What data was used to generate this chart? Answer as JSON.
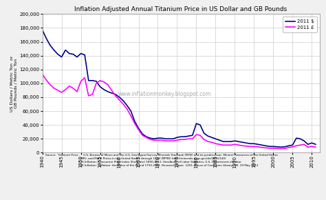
{
  "title": "Inflation Adjusted Annual Titanium Price in US Dollar and GB Pounds",
  "ylabel": "US Dollars / Metric Ton  or\nGB Pounds / Metric Ton",
  "watermark": "www.inflationmonkey.blogspot.com",
  "source_line1": "Source:  Titanium Price -    U.S. Bureau of Mines and the U.S. Geological Survey-Minerals Yearbook (MYB) and its predecessor, Mineral Resources of the United States",
  "source_line2": "                                        (MR), and Metal Prices in the United States through 1998 (MP98) http://minerals.usgs.gov/ds/2005/140/",
  "source_line3": "                                        US Inflation:  Consumer Price Index (Estimate) 1800-2011. Handbook of Labor Statistics, U.S. Department of Labor",
  "source_line4": "                                        UK Inflation:  Inflation: the Value of the Pound 1750-2011. Research Paper  1201, House of Commons Library, UK. 29 May 2012",
  "legend_labels": [
    "2011 $",
    "2011 £"
  ],
  "usd_color": "#00008B",
  "gbp_color": "#FF00FF",
  "background_color": "#F0F0F0",
  "plot_bg_color": "#FFFFFF",
  "grid_color": "#CCCCCC",
  "ylim": [
    0,
    200000
  ],
  "yticks": [
    0,
    20000,
    40000,
    60000,
    80000,
    100000,
    120000,
    140000,
    160000,
    180000,
    200000
  ],
  "xlim": [
    1940,
    2012
  ],
  "xticks": [
    1940,
    1945,
    1950,
    1955,
    1960,
    1965,
    1970,
    1975,
    1980,
    1985,
    1990,
    1995,
    2000,
    2005,
    2010
  ],
  "usd_years": [
    1940,
    1941,
    1942,
    1943,
    1944,
    1945,
    1946,
    1947,
    1948,
    1949,
    1950,
    1951,
    1952,
    1953,
    1954,
    1955,
    1956,
    1957,
    1958,
    1959,
    1960,
    1961,
    1962,
    1963,
    1964,
    1965,
    1966,
    1967,
    1968,
    1969,
    1970,
    1971,
    1972,
    1973,
    1974,
    1975,
    1976,
    1977,
    1978,
    1979,
    1980,
    1981,
    1982,
    1983,
    1984,
    1985,
    1986,
    1987,
    1988,
    1989,
    1990,
    1991,
    1992,
    1993,
    1994,
    1995,
    1996,
    1997,
    1998,
    1999,
    2000,
    2001,
    2002,
    2003,
    2004,
    2005,
    2006,
    2007,
    2008,
    2009,
    2010,
    2011
  ],
  "usd_values": [
    177000,
    165000,
    155000,
    148000,
    142000,
    138000,
    148000,
    143000,
    142000,
    138000,
    143000,
    141000,
    104000,
    104000,
    103000,
    95000,
    91000,
    88000,
    86000,
    84000,
    80000,
    75000,
    68000,
    60000,
    45000,
    35000,
    27000,
    23000,
    21000,
    20000,
    21000,
    21000,
    20000,
    20000,
    20000,
    22000,
    23000,
    23000,
    24000,
    25000,
    42000,
    40000,
    28000,
    24000,
    22000,
    20000,
    18000,
    16000,
    16000,
    16000,
    17000,
    16000,
    15000,
    14000,
    13000,
    13000,
    12000,
    11000,
    10000,
    9000,
    9000,
    8500,
    8000,
    8500,
    10000,
    11000,
    21000,
    20000,
    17000,
    12000,
    14000,
    12000
  ],
  "gbp_years": [
    1940,
    1941,
    1942,
    1943,
    1944,
    1945,
    1946,
    1947,
    1948,
    1949,
    1950,
    1951,
    1952,
    1953,
    1954,
    1955,
    1956,
    1957,
    1958,
    1959,
    1960,
    1961,
    1962,
    1963,
    1964,
    1965,
    1966,
    1967,
    1968,
    1969,
    1970,
    1971,
    1972,
    1973,
    1974,
    1975,
    1976,
    1977,
    1978,
    1979,
    1980,
    1981,
    1982,
    1983,
    1984,
    1985,
    1986,
    1987,
    1988,
    1989,
    1990,
    1991,
    1992,
    1993,
    1994,
    1995,
    1996,
    1997,
    1998,
    1999,
    2000,
    2001,
    2002,
    2003,
    2004,
    2005,
    2006,
    2007,
    2008,
    2009,
    2010,
    2011
  ],
  "gbp_values": [
    113000,
    105000,
    98000,
    93000,
    90000,
    87000,
    91000,
    96000,
    93000,
    88000,
    103000,
    108000,
    82000,
    84000,
    100000,
    104000,
    102000,
    98000,
    90000,
    82000,
    76000,
    70000,
    63000,
    53000,
    42000,
    33000,
    25000,
    22000,
    19000,
    18000,
    18000,
    18000,
    17000,
    17000,
    17000,
    18000,
    19000,
    19000,
    20000,
    20000,
    26000,
    25000,
    19000,
    16000,
    15000,
    13000,
    12000,
    11000,
    11000,
    11000,
    12000,
    11000,
    10000,
    9500,
    9000,
    8800,
    8500,
    7500,
    7000,
    6500,
    6500,
    6000,
    5800,
    6000,
    7500,
    8500,
    10000,
    11000,
    12000,
    8000,
    9000,
    8000
  ]
}
